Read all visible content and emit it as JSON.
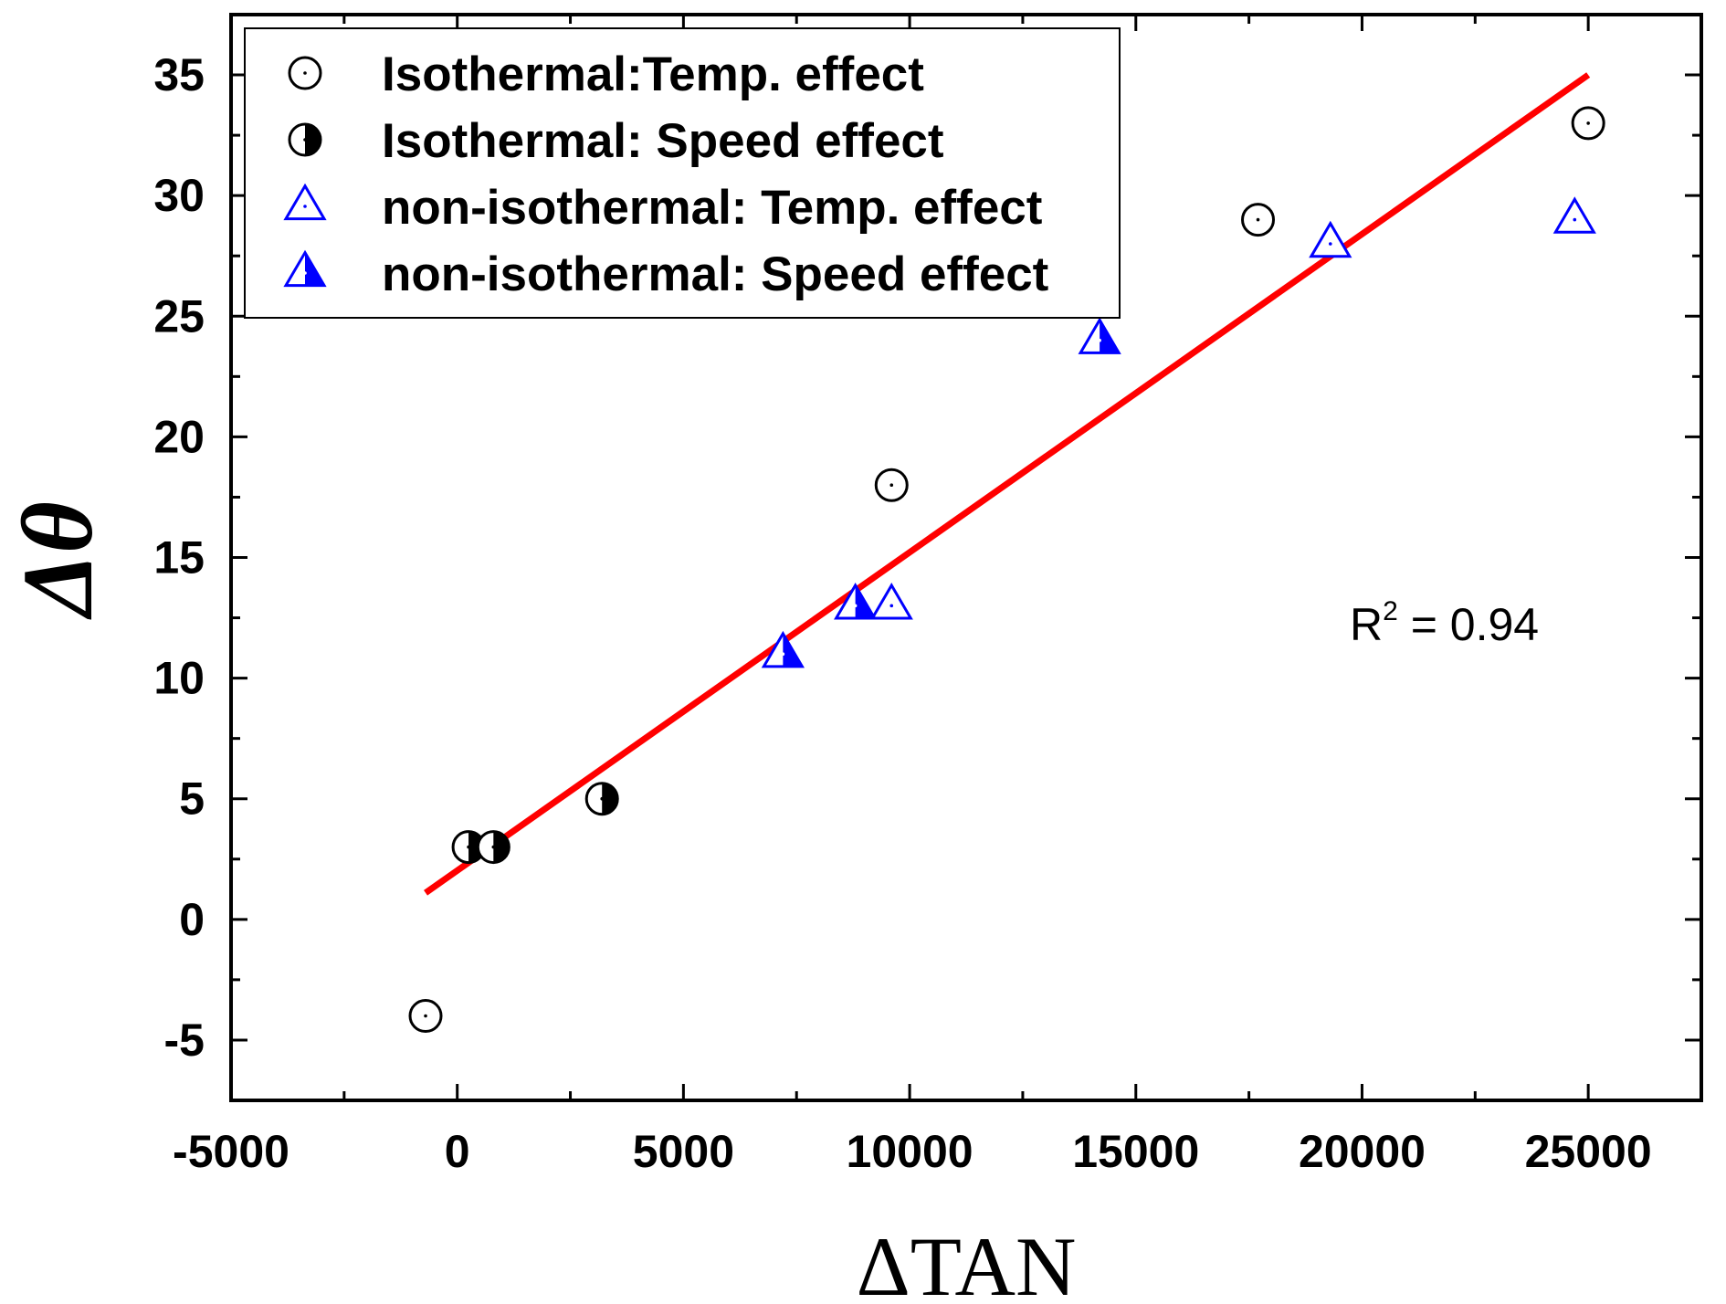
{
  "chart_data": {
    "type": "scatter",
    "xlabel": "ΔTAN",
    "ylabel": "Δθ",
    "xlim": [
      -5000,
      27500
    ],
    "ylim": [
      -7.5,
      37.5
    ],
    "x_ticks": [
      "-5000",
      "0",
      "5000",
      "10000",
      "15000",
      "20000",
      "25000"
    ],
    "y_ticks": [
      "-5",
      "0",
      "5",
      "10",
      "15",
      "20",
      "25",
      "30",
      "35"
    ],
    "legend_position": "top-left",
    "grid": false,
    "series": [
      {
        "name": "Isothermal:Temp. effect",
        "marker": "circle-dot",
        "color": "#000000",
        "points": [
          [
            -700,
            -4
          ],
          [
            9600,
            18
          ],
          [
            17700,
            29
          ],
          [
            25000,
            33
          ]
        ]
      },
      {
        "name": "Isothermal: Speed effect",
        "marker": "circle-half",
        "color": "#000000",
        "points": [
          [
            250,
            3
          ],
          [
            800,
            3
          ],
          [
            3200,
            5
          ]
        ]
      },
      {
        "name": "non-isothermal: Temp. effect",
        "marker": "triangle-dot",
        "color": "#0000ff",
        "points": [
          [
            9600,
            13
          ],
          [
            19300,
            28
          ],
          [
            24700,
            29
          ]
        ]
      },
      {
        "name": "non-isothermal: Speed effect",
        "marker": "triangle-half",
        "color": "#0000ff",
        "points": [
          [
            7200,
            11
          ],
          [
            8800,
            13
          ],
          [
            14200,
            24
          ]
        ]
      }
    ],
    "fit_line": {
      "color": "#ff0000",
      "x": [
        -700,
        25000
      ],
      "y": [
        1.1,
        35
      ]
    },
    "annotation": {
      "text_base": "R",
      "text_sup": "2",
      "text_rest": " = 0.94"
    }
  }
}
